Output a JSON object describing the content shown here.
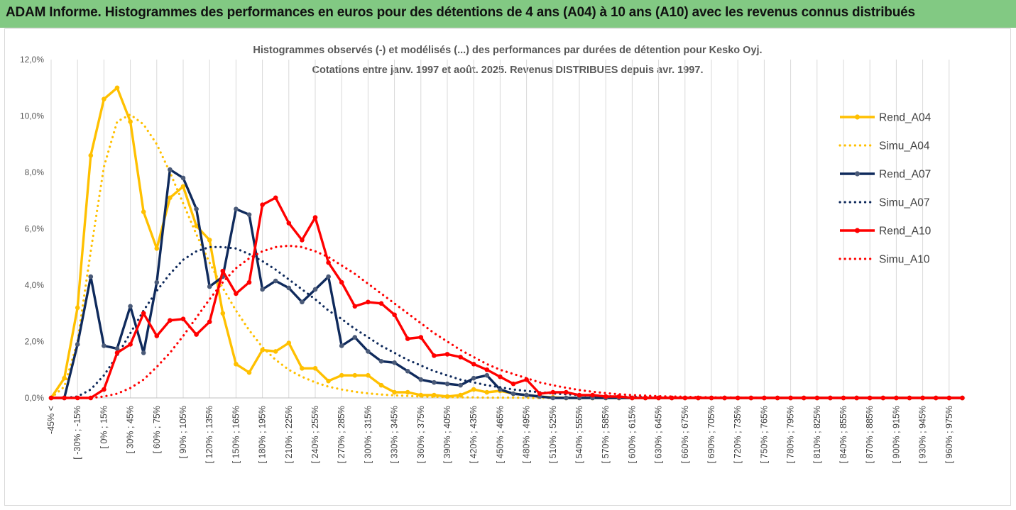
{
  "banner": {
    "title": "ADAM Informe. Histogrammes des performances en euros pour des détentions de 4 ans (A04) à 10 ans (A10) avec les revenus connus distribués"
  },
  "chart_data": {
    "type": "line",
    "title_line1": "Histogrammes observés (-) et modélisés (...) des performances par durées de détention pour Kesko Oyj.",
    "title_line2": "Cotations entre janv. 1997 et août. 2025. Revenus DISTRIBUES depuis avr. 1997.",
    "ylim": [
      0,
      12
    ],
    "ytick_values": [
      0,
      2,
      4,
      6,
      8,
      10,
      12
    ],
    "ytick_labels": [
      "0,0%",
      "2,0%",
      "4,0%",
      "6,0%",
      "8,0%",
      "10,0%",
      "12,0%"
    ],
    "grid": "vertical",
    "legend_position": "right",
    "x_labels": [
      "-45% <",
      "[ -30% ; -15%",
      "[ 0% ; 15%",
      "[ 30% ; 45%",
      "[ 60% ; 75%",
      "[ 90% ; 105%",
      "[ 120% ; 135%",
      "[ 150% ; 165%",
      "[ 180% ; 195%",
      "[ 210% ; 225%",
      "[ 240% ; 255%",
      "[ 270% ; 285%",
      "[ 300% ; 315%",
      "[ 330% ; 345%",
      "[ 360% ; 375%",
      "[ 390% ; 405%",
      "[ 420% ; 435%",
      "[ 450% ; 465%",
      "[ 480% ; 495%",
      "[ 510% ; 525%",
      "[ 540% ; 555%",
      "[ 570% ; 585%",
      "[ 600% ; 615%",
      "[ 630% ; 645%",
      "[ 660% ; 675%",
      "[ 690% ; 705%",
      "[ 720% ; 735%",
      "[ 750% ; 765%",
      "[ 780% ; 795%",
      "[ 810% ; 825%",
      "[ 840% ; 855%",
      "[ 870% ; 885%",
      "[ 900% ; 915%",
      "[ 930% ; 945%",
      "[ 960% ; 975%"
    ],
    "x_count": 70,
    "series": [
      {
        "name": "Rend_A04",
        "style": "solid",
        "color": "#FFC000",
        "values": [
          0,
          0.7,
          3.2,
          8.6,
          10.6,
          11.0,
          9.8,
          6.6,
          5.3,
          7.1,
          7.5,
          6.1,
          5.6,
          3.0,
          1.2,
          0.9,
          1.7,
          1.65,
          1.95,
          1.05,
          1.05,
          0.6,
          0.8,
          0.8,
          0.8,
          0.45,
          0.2,
          0.2,
          0.1,
          0.1,
          0.05,
          0.1,
          0.3,
          0.2,
          0.25,
          0.15,
          0.1,
          0.05,
          0.02,
          0,
          0,
          0,
          0,
          0,
          0,
          0,
          0,
          0,
          0,
          0,
          0,
          0,
          0,
          0,
          0,
          0,
          0,
          0,
          0,
          0,
          0,
          0,
          0,
          0,
          0,
          0,
          0,
          0,
          0,
          0
        ]
      },
      {
        "name": "Simu_A04",
        "style": "dotted",
        "color": "#FFC000",
        "values": [
          0,
          0.4,
          2.0,
          5.2,
          8.2,
          9.8,
          10.05,
          9.7,
          9.0,
          8.0,
          6.9,
          5.8,
          4.8,
          3.9,
          3.1,
          2.4,
          1.8,
          1.35,
          1.0,
          0.75,
          0.55,
          0.4,
          0.3,
          0.22,
          0.16,
          0.12,
          0.09,
          0.07,
          0.05,
          0.04,
          0.03,
          0.02,
          0.02,
          0.01,
          0.01,
          0.01,
          0,
          0,
          0,
          0,
          0,
          0,
          0,
          0,
          0,
          0,
          0,
          0,
          0,
          0,
          0,
          0,
          0,
          0,
          0,
          0,
          0,
          0,
          0,
          0,
          0,
          0,
          0,
          0,
          0,
          0,
          0,
          0,
          0,
          0
        ]
      },
      {
        "name": "Rend_A07",
        "style": "solid",
        "color": "#0F2A5C",
        "values": [
          0,
          0,
          1.9,
          4.3,
          1.85,
          1.75,
          3.25,
          1.6,
          4.1,
          8.1,
          7.8,
          6.7,
          3.95,
          4.3,
          6.7,
          6.5,
          3.85,
          4.15,
          3.9,
          3.4,
          3.85,
          4.3,
          1.85,
          2.15,
          1.65,
          1.3,
          1.25,
          0.95,
          0.65,
          0.55,
          0.5,
          0.45,
          0.7,
          0.8,
          0.3,
          0.15,
          0.1,
          0.05,
          0,
          0,
          0,
          0,
          0,
          0,
          0,
          0,
          0,
          0,
          0,
          0,
          0,
          0,
          0,
          0,
          0,
          0,
          0,
          0,
          0,
          0,
          0,
          0,
          0,
          0,
          0,
          0,
          0,
          0,
          0,
          0
        ]
      },
      {
        "name": "Simu_A07",
        "style": "dotted",
        "color": "#0F2A5C",
        "values": [
          0,
          0,
          0.05,
          0.3,
          0.8,
          1.5,
          2.3,
          3.1,
          3.8,
          4.4,
          4.9,
          5.2,
          5.35,
          5.35,
          5.3,
          5.1,
          4.85,
          4.55,
          4.2,
          3.85,
          3.5,
          3.1,
          2.8,
          2.45,
          2.15,
          1.85,
          1.6,
          1.35,
          1.15,
          0.95,
          0.8,
          0.65,
          0.55,
          0.45,
          0.38,
          0.3,
          0.25,
          0.2,
          0.16,
          0.13,
          0.1,
          0.08,
          0.06,
          0.05,
          0.04,
          0.03,
          0.02,
          0.02,
          0.01,
          0.01,
          0.01,
          0,
          0,
          0,
          0,
          0,
          0,
          0,
          0,
          0,
          0,
          0,
          0,
          0,
          0,
          0,
          0,
          0,
          0,
          0
        ]
      },
      {
        "name": "Rend_A10",
        "style": "solid",
        "color": "#FF0000",
        "values": [
          0,
          0,
          0,
          0,
          0.3,
          1.6,
          1.9,
          3.0,
          2.2,
          2.75,
          2.8,
          2.25,
          2.7,
          4.5,
          3.7,
          4.1,
          6.85,
          7.1,
          6.2,
          5.6,
          6.4,
          4.8,
          4.1,
          3.25,
          3.4,
          3.35,
          2.95,
          2.1,
          2.15,
          1.5,
          1.55,
          1.45,
          1.2,
          1.0,
          0.75,
          0.5,
          0.65,
          0.15,
          0.2,
          0.2,
          0.1,
          0.1,
          0.05,
          0.05,
          0,
          0,
          0,
          0,
          0,
          0,
          0,
          0,
          0,
          0,
          0,
          0,
          0,
          0,
          0,
          0,
          0,
          0,
          0,
          0,
          0,
          0,
          0,
          0,
          0,
          0
        ]
      },
      {
        "name": "Simu_A10",
        "style": "dotted",
        "color": "#FF0000",
        "values": [
          0,
          0,
          0,
          0,
          0.05,
          0.15,
          0.35,
          0.65,
          1.1,
          1.6,
          2.2,
          2.85,
          3.5,
          4.1,
          4.6,
          4.95,
          5.2,
          5.35,
          5.4,
          5.35,
          5.2,
          5.0,
          4.7,
          4.4,
          4.05,
          3.7,
          3.35,
          3.0,
          2.65,
          2.3,
          2.0,
          1.7,
          1.45,
          1.2,
          1.0,
          0.85,
          0.7,
          0.55,
          0.45,
          0.36,
          0.28,
          0.22,
          0.17,
          0.13,
          0.1,
          0.08,
          0.06,
          0.05,
          0.04,
          0.03,
          0.02,
          0.02,
          0.01,
          0.01,
          0.01,
          0,
          0,
          0,
          0,
          0,
          0,
          0,
          0,
          0,
          0,
          0,
          0,
          0,
          0,
          0
        ]
      }
    ]
  }
}
